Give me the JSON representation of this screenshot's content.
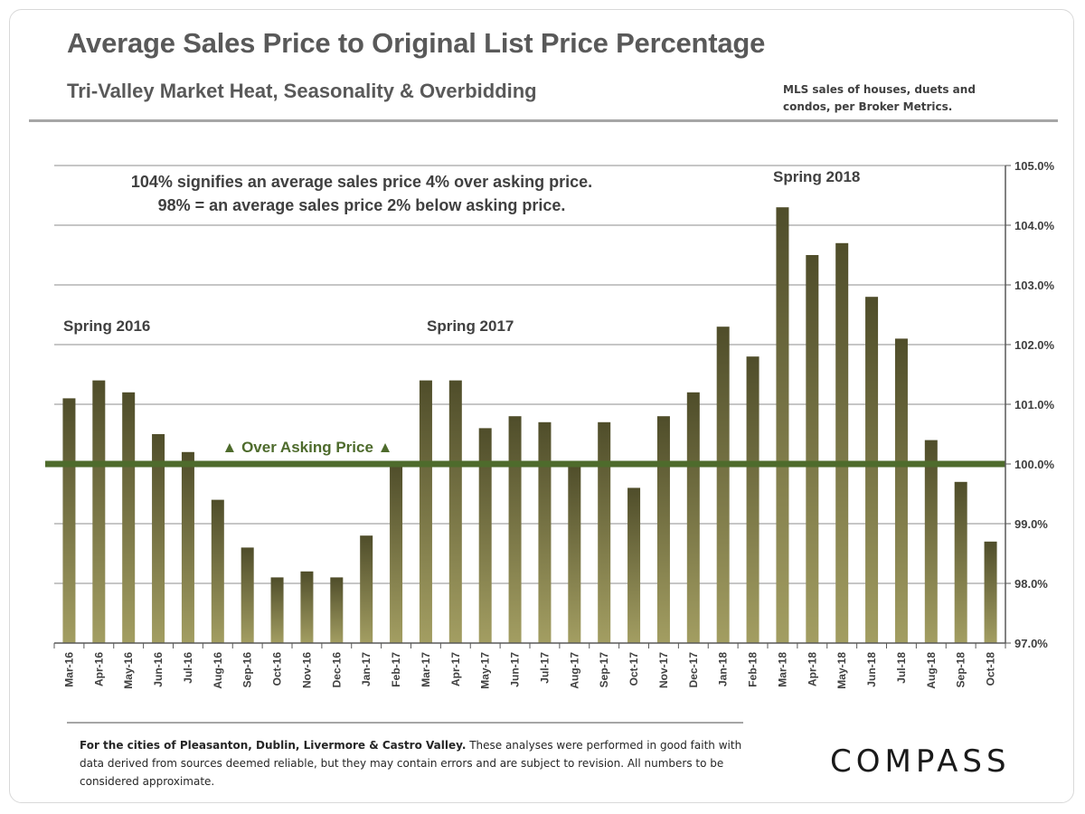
{
  "title": "Average Sales Price to Original List Price Percentage",
  "subtitle": "Tri-Valley  Market Heat, Seasonality & Overbidding",
  "source_note": "MLS sales of houses, duets and condos, per Broker Metrics.",
  "footnote_lead": "For the cities of Pleasanton, Dublin, Livermore & Castro Valley.",
  "footnote_rest": " These analyses were performed in good faith with data derived from sources deemed reliable, but they may contain errors and are subject to revision. All numbers to be considered  approximate.",
  "logo_text": "COMPASS",
  "colors": {
    "bar_top": "#4f4d2a",
    "bar_bottom": "#a39e62",
    "reference_line": "#4e6b2c",
    "grid": "#8c8c8c",
    "text": "#404040"
  },
  "chart_data": {
    "type": "bar",
    "categories": [
      "Mar-16",
      "Apr-16",
      "May-16",
      "Jun-16",
      "Jul-16",
      "Aug-16",
      "Sep-16",
      "Oct-16",
      "Nov-16",
      "Dec-16",
      "Jan-17",
      "Feb-17",
      "Mar-17",
      "Apr-17",
      "May-17",
      "Jun-17",
      "Jul-17",
      "Aug-17",
      "Sep-17",
      "Oct-17",
      "Nov-17",
      "Dec-17",
      "Jan-18",
      "Feb-18",
      "Mar-18",
      "Apr-18",
      "May-18",
      "Jun-18",
      "Jul-18",
      "Aug-18",
      "Sep-18",
      "Oct-18"
    ],
    "values": [
      101.1,
      101.4,
      101.2,
      100.5,
      100.2,
      99.4,
      98.6,
      98.1,
      98.2,
      98.1,
      98.8,
      100.0,
      101.4,
      101.4,
      100.6,
      100.8,
      100.7,
      100.0,
      100.7,
      99.6,
      100.8,
      101.2,
      102.3,
      101.8,
      104.3,
      103.5,
      103.7,
      102.8,
      102.1,
      100.4,
      99.7,
      98.7
    ],
    "ylim": [
      97.0,
      105.0
    ],
    "yticks": [
      "97.0%",
      "98.0%",
      "99.0%",
      "100.0%",
      "101.0%",
      "102.0%",
      "103.0%",
      "104.0%",
      "105.0%"
    ],
    "y_axis_position": "right",
    "grid": true,
    "reference_line": {
      "value": 100.0,
      "label": "▲ Over Asking Price ▲"
    },
    "annotations": {
      "note_line1": "104% signifies  an average sales price 4% over asking price.",
      "note_line2": "98% = an average sales price 2% below asking price.",
      "spring_2016": "Spring 2016",
      "spring_2017": "Spring 2017",
      "spring_2018": "Spring 2018"
    }
  }
}
